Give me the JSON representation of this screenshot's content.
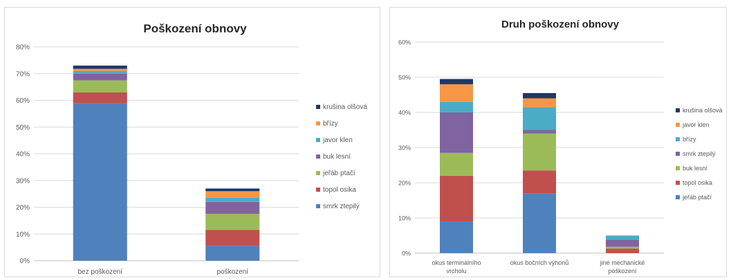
{
  "chart_data": [
    {
      "type": "bar",
      "stacked": true,
      "title": "Poškození obnovy",
      "categories": [
        "bez poškození",
        "poškození"
      ],
      "ylim": [
        0,
        80
      ],
      "yticks": [
        "0%",
        "10%",
        "20%",
        "30%",
        "40%",
        "50%",
        "60%",
        "70%",
        "80%"
      ],
      "grid": true,
      "legend_position": "right",
      "series": [
        {
          "name": "smrk ztepilý",
          "color": "#4f81bd",
          "values": [
            59,
            5.5
          ]
        },
        {
          "name": "topol osika",
          "color": "#c0504d",
          "values": [
            4,
            6
          ]
        },
        {
          "name": "jeřáb ptačí",
          "color": "#9bbb59",
          "values": [
            4.5,
            6
          ]
        },
        {
          "name": "buk lesní",
          "color": "#8064a2",
          "values": [
            2.5,
            4.5
          ]
        },
        {
          "name": "javor klen",
          "color": "#4bacc6",
          "values": [
            1,
            1.5
          ]
        },
        {
          "name": "břízy",
          "color": "#f79646",
          "values": [
            0.8,
            2.5
          ]
        },
        {
          "name": "krušina olšová",
          "color": "#1f3864",
          "values": [
            1.2,
            1
          ]
        }
      ]
    },
    {
      "type": "bar",
      "stacked": true,
      "title": "Druh poškození obnovy",
      "categories": [
        "okus terminálního vrcholu",
        "okus bočních výhonů",
        "jiné mechanické poškození"
      ],
      "ylim": [
        0,
        60
      ],
      "yticks": [
        "0%",
        "10%",
        "20%",
        "30%",
        "40%",
        "50%",
        "60%"
      ],
      "grid": true,
      "legend_position": "right",
      "series": [
        {
          "name": "jeřáb ptačí",
          "color": "#4f81bd",
          "values": [
            9,
            17,
            0
          ]
        },
        {
          "name": "topol osika",
          "color": "#c0504d",
          "values": [
            13,
            6.5,
            1.3
          ]
        },
        {
          "name": "buk lesní",
          "color": "#9bbb59",
          "values": [
            6.5,
            10.5,
            0.5
          ]
        },
        {
          "name": "smrk ztepilý",
          "color": "#8064a2",
          "values": [
            11.5,
            1,
            2
          ]
        },
        {
          "name": "břízy",
          "color": "#4bacc6",
          "values": [
            3,
            6.5,
            1.2
          ]
        },
        {
          "name": "javor klen",
          "color": "#f79646",
          "values": [
            5,
            2.5,
            0
          ]
        },
        {
          "name": "krušina olšová",
          "color": "#1f3864",
          "values": [
            1.5,
            1.5,
            0
          ]
        }
      ]
    }
  ]
}
